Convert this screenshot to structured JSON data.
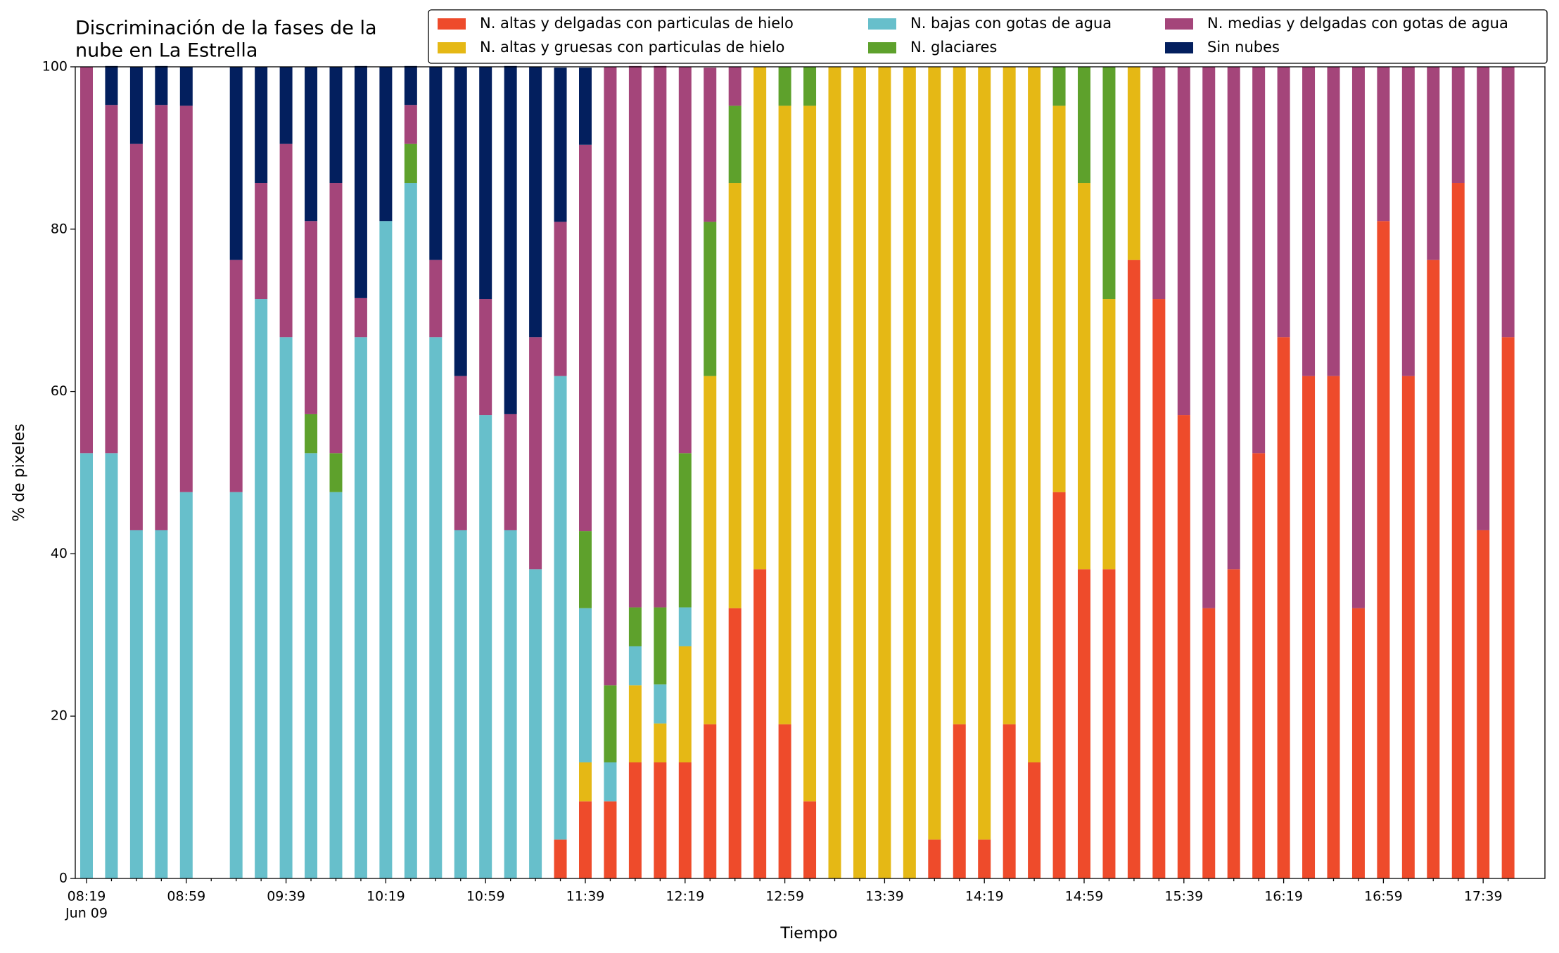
{
  "chart_data": {
    "type": "stacked_bar",
    "title": [
      "Discriminación de la fases de la",
      "nube en La Estrella"
    ],
    "xlabel": "Tiempo",
    "ylabel": "% de pixeles",
    "date": "Jun 09",
    "categories": [
      "08:19",
      null,
      null,
      null,
      "08:59",
      null,
      null,
      null,
      "09:39",
      null,
      null,
      null,
      "10:19",
      null,
      null,
      null,
      "10:59",
      null,
      null,
      null,
      "11:39",
      null,
      null,
      null,
      "12:19",
      null,
      null,
      null,
      "12:59",
      null,
      null,
      null,
      "13:39",
      null,
      null,
      null,
      "14:19",
      null,
      null,
      null,
      "14:59",
      null,
      null,
      null,
      "15:39",
      null,
      null,
      null,
      "16:19",
      null,
      null,
      null,
      "16:59",
      null,
      null,
      null,
      "17:39",
      null
    ],
    "ylim": [
      0,
      100
    ],
    "yticks": [
      0,
      20,
      40,
      60,
      80,
      100
    ],
    "grid": false,
    "legend": "top",
    "series": [
      {
        "name": "N. altas y delgadas con particulas de hielo",
        "color": "#ee4b2b",
        "values": [
          0,
          0,
          0,
          0,
          0,
          null,
          0,
          0,
          0,
          0,
          0,
          0,
          0,
          0,
          0,
          0,
          0,
          0,
          0,
          4.8,
          9.5,
          9.5,
          14.3,
          14.3,
          14.3,
          19,
          33.3,
          38.1,
          19,
          9.5,
          0,
          0,
          0,
          0,
          4.8,
          19,
          4.8,
          19,
          14.3,
          47.6,
          38.1,
          38.1,
          76.2,
          71.4,
          57.1,
          33.3,
          38.1,
          52.4,
          66.7,
          61.9,
          61.9,
          33.3,
          81,
          61.9,
          76.2,
          85.7,
          42.9,
          66.7
        ]
      },
      {
        "name": "N. altas y gruesas con particulas de hielo",
        "color": "#e5b815",
        "values": [
          0,
          0,
          0,
          0,
          0,
          null,
          0,
          0,
          0,
          0,
          0,
          0,
          0,
          0,
          0,
          0,
          0,
          0,
          0,
          0,
          4.8,
          0,
          9.5,
          4.8,
          14.3,
          42.9,
          52.4,
          61.9,
          76.2,
          85.7,
          100,
          100,
          100,
          100,
          95.2,
          81,
          95.2,
          81,
          85.7,
          47.6,
          47.6,
          33.3,
          23.8,
          0,
          0,
          0,
          0,
          0,
          0,
          0,
          0,
          0,
          0,
          0,
          0,
          0,
          0,
          0
        ]
      },
      {
        "name": "N. bajas con gotas de agua",
        "color": "#67bfcb",
        "values": [
          52.4,
          52.4,
          42.9,
          42.9,
          47.6,
          null,
          47.6,
          71.4,
          66.7,
          52.4,
          47.6,
          66.7,
          81,
          85.7,
          66.7,
          42.9,
          57.1,
          42.9,
          38.1,
          57.1,
          19,
          4.8,
          4.8,
          4.8,
          4.8,
          0,
          0,
          0,
          0,
          0,
          0,
          0,
          0,
          0,
          0,
          0,
          0,
          0,
          0,
          0,
          0,
          0,
          0,
          0,
          0,
          0,
          0,
          0,
          0,
          0,
          0,
          0,
          0,
          0,
          0,
          0,
          0,
          0
        ]
      },
      {
        "name": "N. glaciares",
        "color": "#5ea12c",
        "values": [
          0,
          0,
          0,
          0,
          0,
          null,
          0,
          0,
          0,
          4.8,
          4.8,
          0,
          0,
          4.8,
          0,
          0,
          0,
          0,
          0,
          0,
          9.5,
          9.5,
          4.8,
          9.5,
          19,
          19,
          9.5,
          0,
          4.8,
          4.8,
          0,
          0,
          0,
          0,
          0,
          0,
          0,
          0,
          0,
          4.8,
          14.3,
          28.6,
          0,
          0,
          0,
          0,
          0,
          0,
          0,
          0,
          0,
          0,
          0,
          0,
          0,
          0,
          0,
          0
        ]
      },
      {
        "name": "N. medias y delgadas con gotas de agua",
        "color": "#a4457a",
        "values": [
          47.6,
          42.9,
          47.6,
          52.4,
          47.6,
          null,
          28.6,
          14.3,
          23.8,
          23.8,
          33.3,
          4.8,
          0,
          4.8,
          9.5,
          19,
          14.3,
          14.3,
          28.6,
          19,
          47.6,
          76.2,
          66.7,
          66.7,
          47.6,
          19,
          4.8,
          0,
          0,
          0,
          0,
          0,
          0,
          0,
          0,
          0,
          0,
          0,
          0,
          0,
          0,
          0,
          0,
          28.6,
          42.9,
          66.7,
          61.9,
          47.6,
          33.3,
          38.1,
          38.1,
          66.7,
          19,
          38.1,
          23.8,
          14.3,
          57.1,
          33.3
        ]
      },
      {
        "name": "Sin nubes",
        "color": "#031f5e",
        "values": [
          0,
          4.8,
          9.5,
          4.8,
          4.8,
          null,
          23.8,
          14.3,
          9.5,
          19,
          14.3,
          28.6,
          19,
          4.8,
          23.8,
          38.1,
          28.6,
          42.9,
          33.3,
          19,
          9.5,
          0,
          0,
          0,
          0,
          0,
          0,
          0,
          0,
          0,
          0,
          0,
          0,
          0,
          0,
          0,
          0,
          0,
          0,
          0,
          0,
          0,
          0,
          0,
          0,
          0,
          0,
          0,
          0,
          0,
          0,
          0,
          0,
          0,
          0,
          0,
          0,
          0
        ]
      }
    ]
  }
}
